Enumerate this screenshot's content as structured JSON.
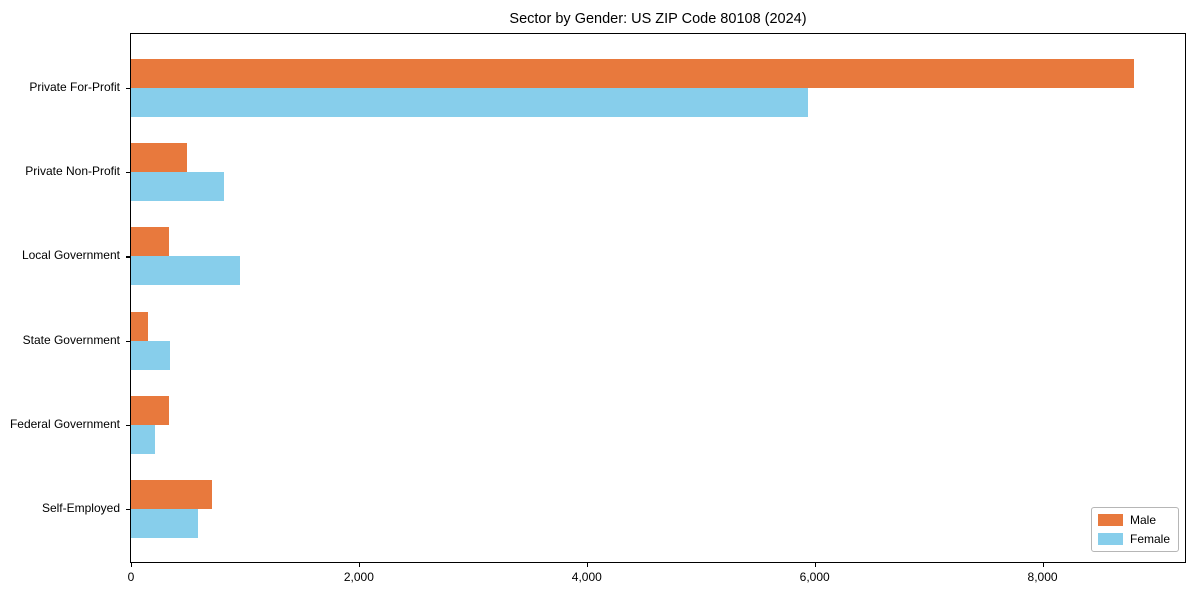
{
  "title": "Sector by Gender: US ZIP Code 80108 (2024)",
  "colors": {
    "male": "#e8793d",
    "female": "#87ceeb",
    "axis": "#000000",
    "legend_border": "#b6b6b6",
    "background": "#ffffff"
  },
  "chart_data": {
    "type": "bar",
    "orientation": "horizontal",
    "title": "Sector by Gender: US ZIP Code 80108 (2024)",
    "xlabel": "",
    "ylabel": "",
    "categories": [
      "Private For-Profit",
      "Private Non-Profit",
      "Local Government",
      "State Government",
      "Federal Government",
      "Self-Employed"
    ],
    "series": [
      {
        "name": "Male",
        "color": "#e8793d",
        "values": [
          8800,
          490,
          330,
          150,
          330,
          710
        ]
      },
      {
        "name": "Female",
        "color": "#87ceeb",
        "values": [
          5940,
          820,
          960,
          340,
          210,
          590
        ]
      }
    ],
    "xlim": [
      0,
      9250
    ],
    "xticks": [
      0,
      2000,
      4000,
      6000,
      8000
    ],
    "xtick_labels": [
      "0",
      "2,000",
      "4,000",
      "6,000",
      "8,000"
    ],
    "grid": false,
    "legend_position": "lower right"
  },
  "legend": {
    "items": [
      {
        "label": "Male",
        "color": "#e8793d"
      },
      {
        "label": "Female",
        "color": "#87ceeb"
      }
    ]
  }
}
